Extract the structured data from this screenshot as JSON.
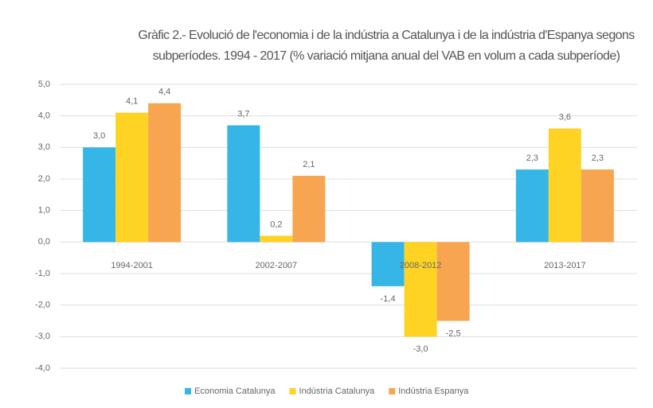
{
  "chart_data": {
    "type": "bar",
    "title": "Gràfic 2.- Evolució de l'economia i de la indústria a Catalunya i de la indústria d'Espanya segons subperíodes. 1994 - 2017 (% variació mitjana anual del VAB en volum a cada subperíode)",
    "categories": [
      "1994-2001",
      "2002-2007",
      "2008-2012",
      "2013-2017"
    ],
    "series": [
      {
        "name": "Economia Catalunya",
        "color": "#35b6e6",
        "values": [
          3.0,
          3.7,
          -1.4,
          2.3
        ],
        "value_labels": [
          "3,0",
          "3,7",
          "-1,4",
          "2,3"
        ]
      },
      {
        "name": "Indústria Catalunya",
        "color": "#ffd323",
        "values": [
          4.1,
          0.2,
          -3.0,
          3.6
        ],
        "value_labels": [
          "4,1",
          "0,2",
          "-3,0",
          "3,6"
        ]
      },
      {
        "name": "Indústria Espanya",
        "color": "#f7a550",
        "values": [
          4.4,
          2.1,
          -2.5,
          2.3
        ],
        "value_labels": [
          "4,4",
          "2,1",
          "-2,5",
          "2,3"
        ]
      }
    ],
    "ylim": [
      -4,
      5
    ],
    "yticks": [
      {
        "value": 5,
        "label": "5,0"
      },
      {
        "value": 4,
        "label": "4,0"
      },
      {
        "value": 3,
        "label": "3,0"
      },
      {
        "value": 2,
        "label": "2,0"
      },
      {
        "value": 1,
        "label": "1,0"
      },
      {
        "value": 0,
        "label": "0,0"
      },
      {
        "value": -1,
        "label": "-1,0"
      },
      {
        "value": -2,
        "label": "-2,0"
      },
      {
        "value": -3,
        "label": "-3,0"
      },
      {
        "value": -4,
        "label": "-4,0"
      }
    ],
    "grid": true,
    "legend": "bottom"
  }
}
